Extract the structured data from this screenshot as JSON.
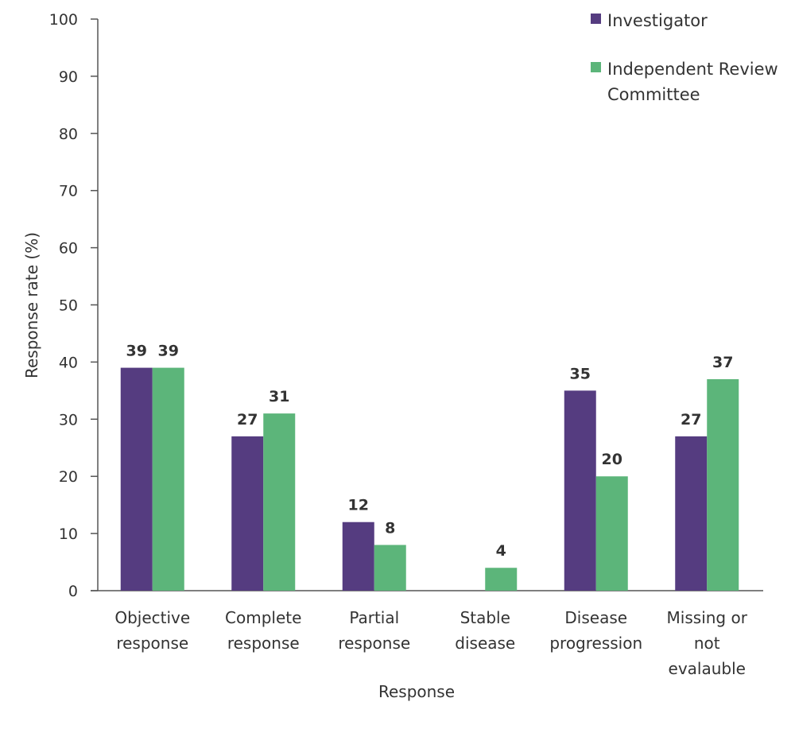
{
  "chart_data": {
    "type": "bar",
    "title": "",
    "xlabel": "Response",
    "ylabel": "Response rate (%)",
    "ylim": [
      0,
      100
    ],
    "yticks": [
      "0",
      "10",
      "20",
      "30",
      "40",
      "50",
      "60",
      "70",
      "80",
      "90",
      "100"
    ],
    "grid": false,
    "legend_position": "top-right",
    "categories": [
      [
        "Objective",
        "response"
      ],
      [
        "Complete",
        "response"
      ],
      [
        "Partial",
        "response"
      ],
      [
        "Stable",
        "disease"
      ],
      [
        "Disease",
        "progression"
      ],
      [
        "Missing or",
        "not",
        "evalauble"
      ]
    ],
    "series": [
      {
        "name": "Investigator",
        "color": "#553c80",
        "values": [
          39,
          27,
          12,
          null,
          35,
          27
        ]
      },
      {
        "name": "Independent Review Committee",
        "legend_lines": [
          "Independent Review",
          "Committee"
        ],
        "color": "#5cb57a",
        "values": [
          39,
          31,
          8,
          4,
          20,
          37
        ]
      }
    ]
  }
}
